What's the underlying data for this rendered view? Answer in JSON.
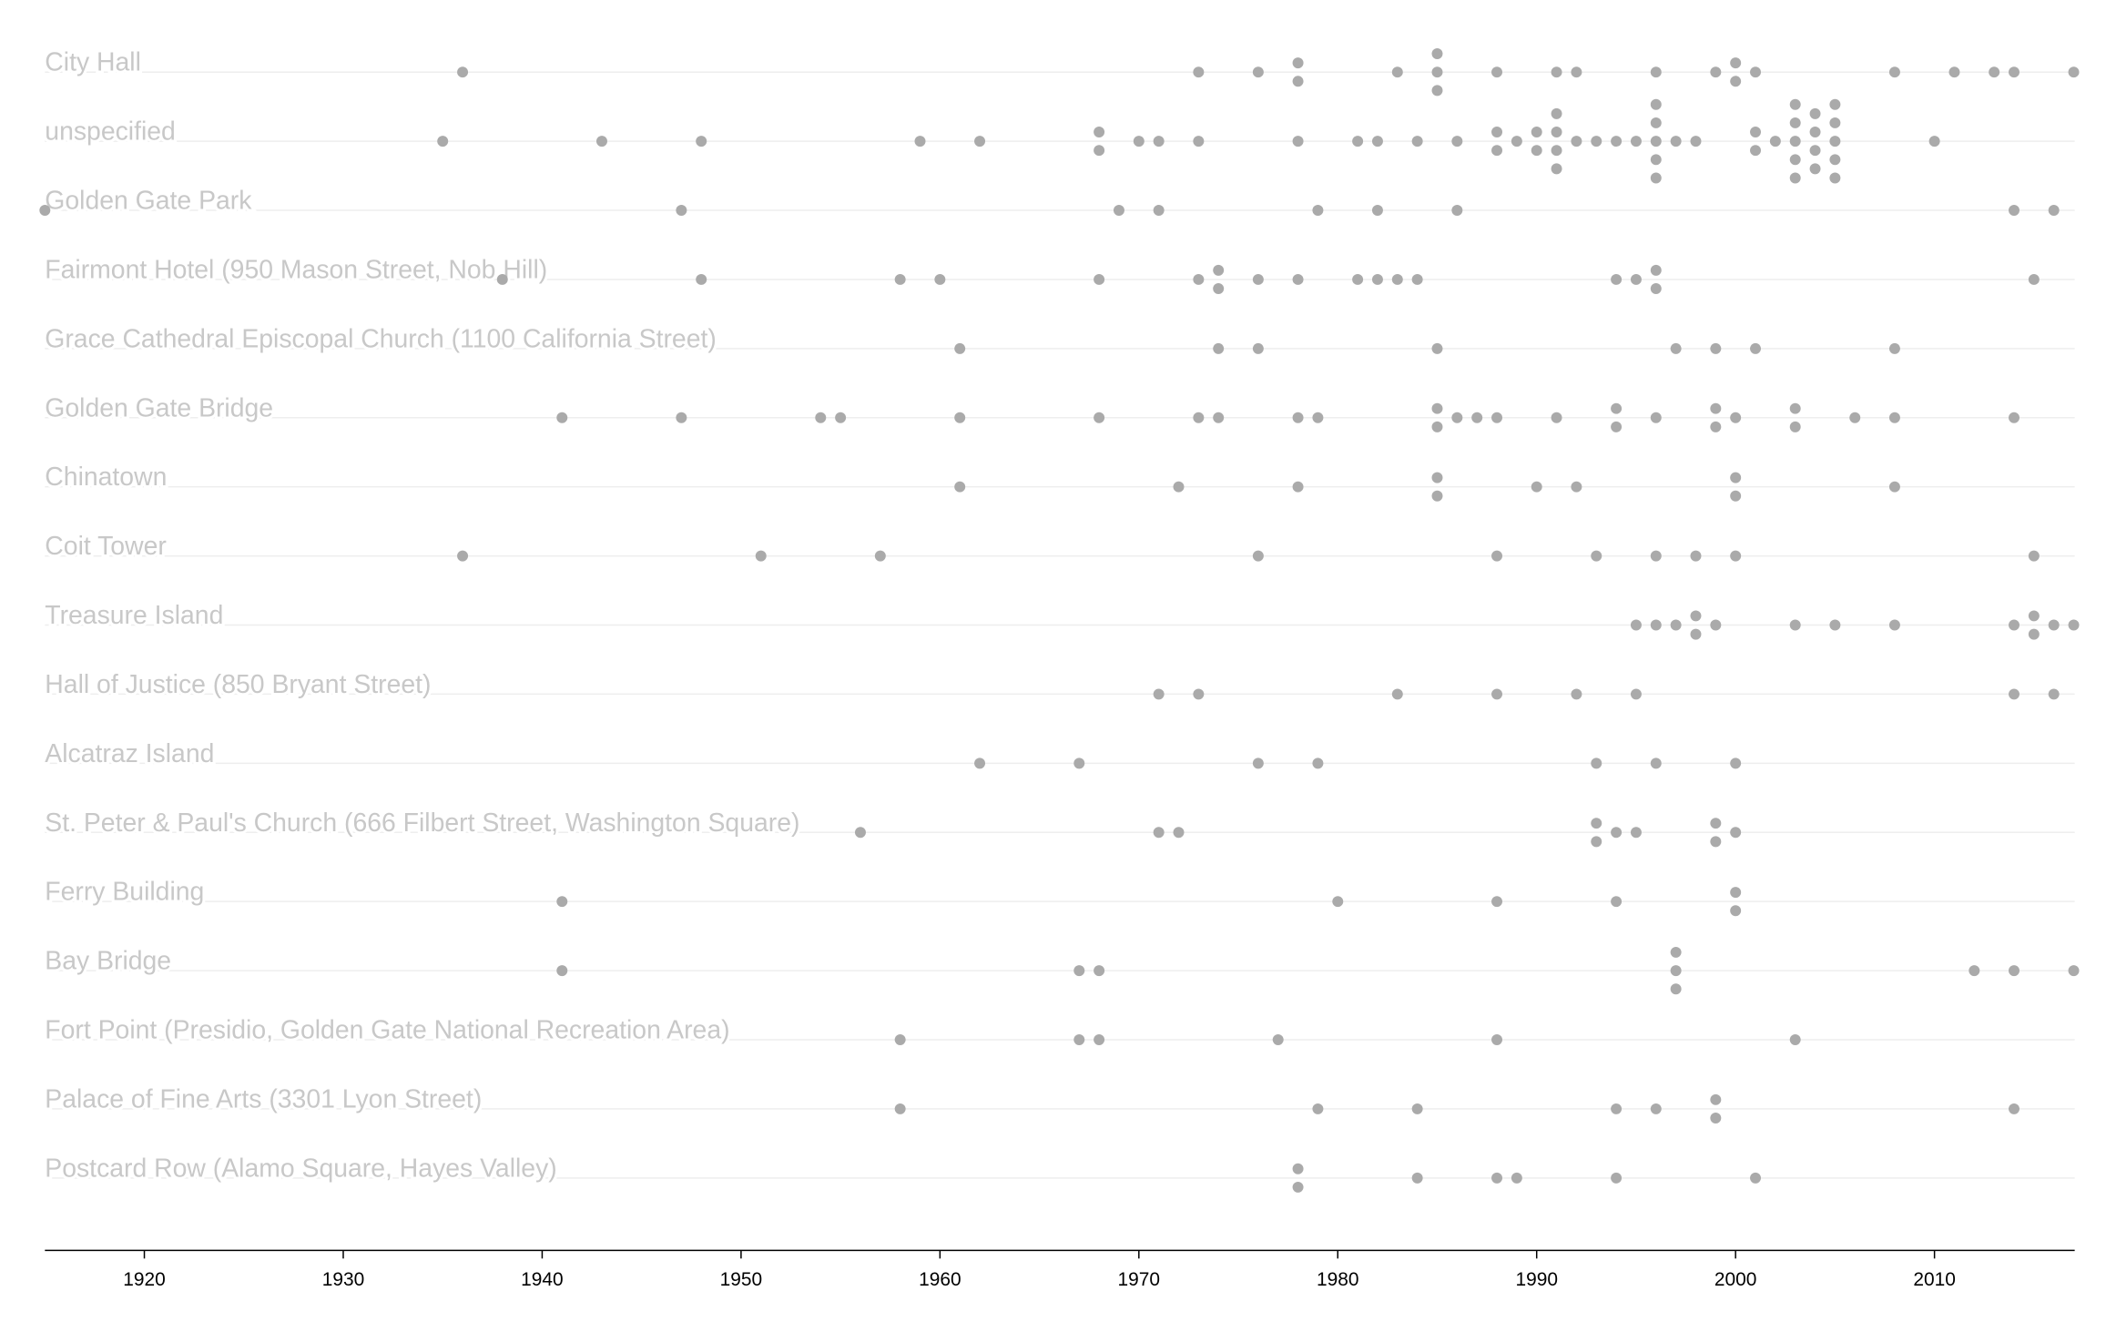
{
  "chart_data": {
    "type": "strip",
    "color": "#aaaaaa",
    "xlim": [
      1915,
      2017.05
    ],
    "xticks": [
      1920,
      1930,
      1940,
      1950,
      1960,
      1970,
      1980,
      1990,
      2000,
      2010
    ],
    "series": [
      {
        "name": "City Hall",
        "values": [
          1936,
          1973,
          1976,
          1978,
          1978,
          1983,
          1985,
          1985,
          1985,
          1988,
          1991,
          1992,
          1996,
          1999,
          2000,
          2000,
          2001,
          2008,
          2011,
          2013,
          2014,
          2017
        ]
      },
      {
        "name": "unspecified",
        "values": [
          1935,
          1943,
          1948,
          1959,
          1962,
          1968,
          1968,
          1970,
          1971,
          1973,
          1978,
          1981,
          1982,
          1984,
          1986,
          1988,
          1988,
          1989,
          1990,
          1990,
          1991,
          1991,
          1991,
          1991,
          1992,
          1993,
          1994,
          1995,
          1996,
          1996,
          1996,
          1996,
          1996,
          1997,
          1998,
          2001,
          2001,
          2002,
          2003,
          2003,
          2003,
          2003,
          2003,
          2004,
          2004,
          2004,
          2004,
          2005,
          2005,
          2005,
          2005,
          2005,
          2010
        ]
      },
      {
        "name": "Golden Gate Park",
        "values": [
          1915,
          1947,
          1969,
          1971,
          1979,
          1982,
          1986,
          2014,
          2016
        ]
      },
      {
        "name": "Fairmont Hotel (950 Mason Street, Nob Hill)",
        "values": [
          1938,
          1948,
          1958,
          1960,
          1968,
          1973,
          1974,
          1974,
          1976,
          1978,
          1981,
          1982,
          1983,
          1984,
          1994,
          1995,
          1996,
          1996,
          2015
        ]
      },
      {
        "name": "Grace Cathedral Episcopal Church (1100 California Street)",
        "values": [
          1961,
          1974,
          1976,
          1985,
          1997,
          1999,
          2001,
          2008
        ]
      },
      {
        "name": "Golden Gate Bridge",
        "values": [
          1941,
          1947,
          1954,
          1955,
          1961,
          1968,
          1973,
          1974,
          1978,
          1979,
          1985,
          1985,
          1986,
          1987,
          1988,
          1991,
          1994,
          1994,
          1996,
          1999,
          1999,
          2000,
          2003,
          2003,
          2006,
          2008,
          2014
        ]
      },
      {
        "name": "Chinatown",
        "values": [
          1961,
          1972,
          1978,
          1985,
          1985,
          1990,
          1992,
          2000,
          2000,
          2008
        ]
      },
      {
        "name": "Coit Tower",
        "values": [
          1936,
          1951,
          1957,
          1976,
          1988,
          1993,
          1996,
          1998,
          2000,
          2015
        ]
      },
      {
        "name": "Treasure Island",
        "values": [
          1995,
          1996,
          1997,
          1998,
          1998,
          1999,
          2003,
          2005,
          2008,
          2014,
          2015,
          2015,
          2016,
          2017
        ]
      },
      {
        "name": "Hall of Justice (850 Bryant Street)",
        "values": [
          1971,
          1973,
          1983,
          1988,
          1992,
          1995,
          2014,
          2016
        ]
      },
      {
        "name": "Alcatraz Island",
        "values": [
          1962,
          1967,
          1976,
          1979,
          1993,
          1996,
          2000
        ]
      },
      {
        "name": "St. Peter & Paul's Church (666 Filbert Street, Washington Square)",
        "values": [
          1956,
          1971,
          1972,
          1993,
          1993,
          1994,
          1995,
          1999,
          1999,
          2000
        ]
      },
      {
        "name": "Ferry Building",
        "values": [
          1941,
          1980,
          1988,
          1994,
          2000,
          2000
        ]
      },
      {
        "name": "Bay Bridge",
        "values": [
          1941,
          1967,
          1968,
          1997,
          1997,
          1997,
          2012,
          2014,
          2017
        ]
      },
      {
        "name": "Fort Point (Presidio, Golden Gate National Recreation Area)",
        "values": [
          1958,
          1967,
          1968,
          1977,
          1988,
          2003
        ]
      },
      {
        "name": "Palace of Fine Arts (3301 Lyon Street)",
        "values": [
          1958,
          1979,
          1984,
          1994,
          1996,
          1999,
          1999,
          2014
        ]
      },
      {
        "name": "Postcard Row (Alamo Square, Hayes Valley)",
        "values": [
          1978,
          1978,
          1984,
          1988,
          1989,
          1994,
          2001
        ]
      }
    ]
  }
}
